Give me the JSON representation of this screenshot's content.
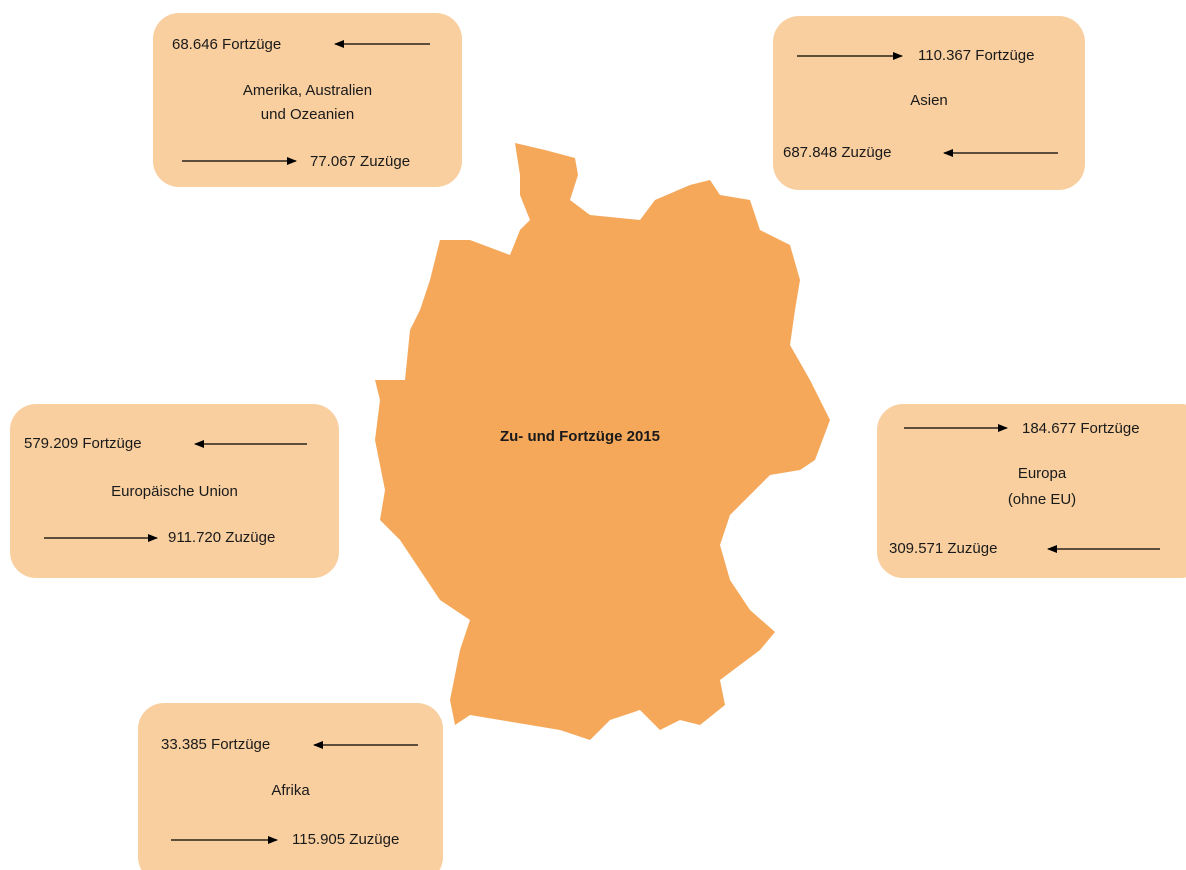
{
  "title": "Zu- und Fortzüge 2015",
  "regions": [
    {
      "name": [
        "Amerika, Australien",
        "und Ozeanien"
      ],
      "fortzuege": "68.646 Fortzüge",
      "zuzuege": "77.067 Zuzüge"
    },
    {
      "name": [
        "Asien"
      ],
      "fortzuege": "110.367 Fortzüge",
      "zuzuege": "687.848 Zuzüge"
    },
    {
      "name": [
        "Europäische Union"
      ],
      "fortzuege": "579.209 Fortzüge",
      "zuzuege": "911.720 Zuzüge"
    },
    {
      "name": [
        "Europa",
        "(ohne EU)"
      ],
      "fortzuege": "184.677 Fortzüge",
      "zuzuege": "309.571 Zuzüge"
    },
    {
      "name": [
        "Afrika"
      ],
      "fortzuege": "33.385 Fortzüge",
      "zuzuege": "115.905 Zuzüge"
    }
  ]
}
